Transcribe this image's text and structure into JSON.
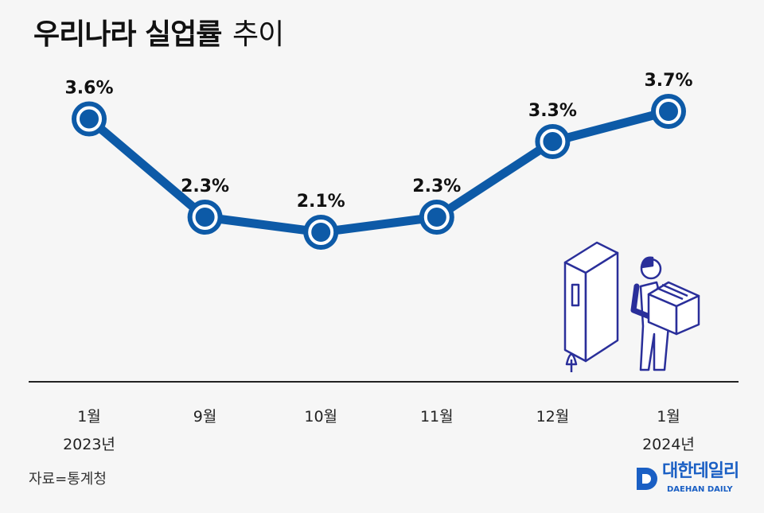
{
  "title": {
    "bold": "우리나라 실업률",
    "light": "추이"
  },
  "source": "자료=통계청",
  "logo": {
    "korean": "대한데일리",
    "english": "DAEHAN DAILY"
  },
  "colors": {
    "line": "#0d5aa7",
    "background": "#f6f6f6",
    "illustration": "#2a2f9a"
  },
  "chart_data": {
    "type": "line",
    "title": "우리나라 실업률 추이",
    "categories": [
      {
        "month": "1월",
        "year": "2023년"
      },
      {
        "month": "9월",
        "year": ""
      },
      {
        "month": "10월",
        "year": ""
      },
      {
        "month": "11월",
        "year": ""
      },
      {
        "month": "12월",
        "year": ""
      },
      {
        "month": "1월",
        "year": "2024년"
      }
    ],
    "values": [
      3.6,
      2.3,
      2.1,
      2.3,
      3.3,
      3.7
    ],
    "labels": [
      "3.6%",
      "2.3%",
      "2.1%",
      "2.3%",
      "3.3%",
      "3.7%"
    ],
    "unit": "%",
    "grid": false
  }
}
